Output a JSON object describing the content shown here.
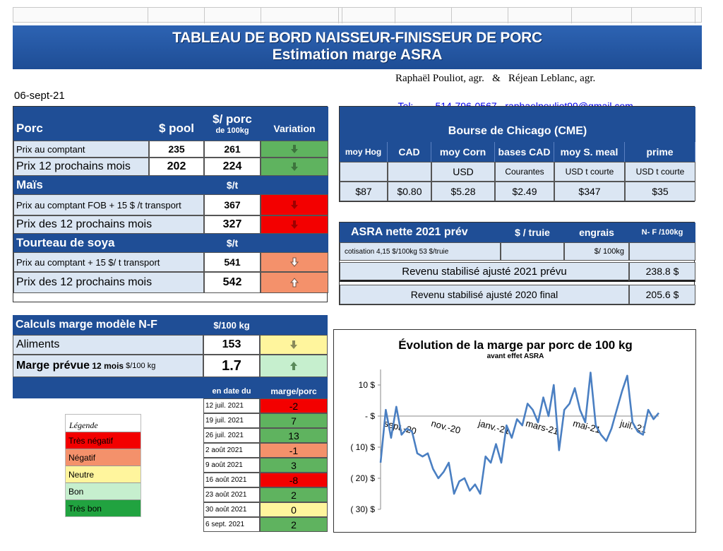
{
  "colors": {
    "header": "#1f4e96",
    "light": "#dbe6f3",
    "red": "#f30000",
    "orange": "#f4916b",
    "yellow": "#fff59d",
    "lightgreen": "#c6efce",
    "green": "#5fb35f",
    "darkgreen": "#21a340"
  },
  "banner": {
    "title": "TABLEAU  DE BORD NAISSEUR-FINISSEUR  DE PORC",
    "subtitle": "Estimation marge ASRA"
  },
  "authors": {
    "names": "Raphaël Pouliot, agr.   &   Réjean Leblanc, agr.",
    "tel_label": "Tel:",
    "tel": "514-796-0567",
    "email": "raphaelpouliot99@gmail.com"
  },
  "date": "06-sept-21",
  "left_table": {
    "col_pool": "$ pool",
    "col_porc": "$/ porc",
    "col_porc_sub": "de 100kg",
    "col_var": "Variation",
    "porc": {
      "title": "Porc",
      "rows": [
        {
          "label": "Prix au comptant",
          "pool": "235",
          "porc": "261",
          "var": "down",
          "color": "green"
        },
        {
          "label": "Prix 12 prochains mois",
          "pool": "202",
          "porc": "224",
          "var": "down",
          "color": "green"
        }
      ]
    },
    "mais": {
      "title": "Maïs",
      "unit": "$/t",
      "rows": [
        {
          "label": "Prix au comptant  FOB + 15 $ /t transport",
          "value": "367",
          "var": "down",
          "color": "red"
        },
        {
          "label": "Prix des 12 prochains mois",
          "value": "327",
          "var": "down",
          "color": "red"
        }
      ]
    },
    "soya": {
      "title": "Tourteau de soya",
      "unit": "$/t",
      "rows": [
        {
          "label": "Prix au comptant  + 15 $/ t  transport",
          "value": "541",
          "var": "down-outline",
          "color": "orange"
        },
        {
          "label": "Prix des 12 prochains mois",
          "value": "542",
          "var": "up-outline",
          "color": "orange"
        }
      ]
    }
  },
  "chicago": {
    "title": "Bourse de Chicago (CME)",
    "headers": [
      "moy Hog",
      "CAD",
      "moy Corn",
      "bases CAD",
      "moy S. meal",
      "prime"
    ],
    "units": [
      "",
      "",
      "USD",
      "Courantes",
      "USD t courte",
      "USD t courte"
    ],
    "values": [
      "$87",
      "$0.80",
      "$5.28",
      "$2.49",
      "$347",
      "$35"
    ]
  },
  "asra": {
    "title": "ASRA nette 2021 prév",
    "col_truie": "$ / truie",
    "col_engrais": "engrais",
    "col_nf": "N- F /100kg",
    "cotisation": "cotisation 4,15 $/100kg  53 $/truie",
    "engrais_unit": "$/ 100kg",
    "rev2021_label": "Revenu stabilisé ajusté 2021 prévu",
    "rev2021": "238.8 $",
    "rev2020_label": "Revenu stabilisé ajusté 2020 final",
    "rev2020": "205.6 $"
  },
  "marge": {
    "title": "Calculs marge  modèle N-F",
    "unit": "$/100 kg",
    "aliments_label": "Aliments",
    "aliments": "153",
    "prevue_label": "Marge prévue",
    "prevue_sub": " 12 mois",
    "prevue_unit": " $/100 kg",
    "prevue": "1.7",
    "col_date": "en date du",
    "col_marge": "marge/porc",
    "history": [
      {
        "date": "12 juil. 2021",
        "value": "-2",
        "color": "red"
      },
      {
        "date": "19 juil. 2021",
        "value": "7",
        "color": "green"
      },
      {
        "date": "26 juil. 2021",
        "value": "13",
        "color": "green"
      },
      {
        "date": "2 août 2021",
        "value": "-1",
        "color": "orange"
      },
      {
        "date": "9 août 2021",
        "value": "3",
        "color": "green"
      },
      {
        "date": "16 août 2021",
        "value": "-8",
        "color": "red"
      },
      {
        "date": "23 août 2021",
        "value": "2",
        "color": "green"
      },
      {
        "date": "30 août 2021",
        "value": "0",
        "color": "yellow"
      },
      {
        "date": "6 sept. 2021",
        "value": "2",
        "color": "green"
      }
    ]
  },
  "legend": {
    "title": "Légende",
    "items": [
      {
        "label": "Très négatif",
        "color": "red"
      },
      {
        "label": "Négatif",
        "color": "orange"
      },
      {
        "label": "Neutre",
        "color": "yellow"
      },
      {
        "label": "Bon",
        "color": "lightgreen"
      },
      {
        "label": "Très bon",
        "color": "darkgreen"
      }
    ]
  },
  "chart_data": {
    "type": "line",
    "title": "Évolution de la marge par porc de 100 kg",
    "subtitle": "avant effet ASRA",
    "ylim": [
      -30,
      15
    ],
    "yticks": [
      10,
      0,
      -10,
      -20,
      -30
    ],
    "ytick_labels": [
      "10  $",
      "-   $",
      "( 10) $",
      "( 20) $",
      "( 30) $"
    ],
    "xtick_labels": [
      "sept.-20",
      "nov.-20",
      "janv.-21",
      "mars-21",
      "mai-21",
      "juil.-21"
    ],
    "xtick_index": [
      0,
      9,
      18,
      27,
      36,
      45
    ],
    "series": [
      {
        "values": [
          -15,
          2,
          -7,
          3,
          -6,
          -4,
          -5,
          -12,
          -13,
          -12,
          -17,
          -20,
          -18,
          -15,
          -25,
          -21,
          -20,
          -24,
          -22,
          -25,
          -13,
          -15,
          -9,
          -15,
          -3,
          -7,
          -1,
          -3,
          4,
          2,
          -2,
          6,
          0,
          10,
          -11,
          2,
          4,
          9,
          2,
          -2,
          14,
          -3,
          -6,
          -8,
          -4,
          2,
          8,
          13,
          -2,
          -5,
          -6,
          2,
          -1,
          1
        ]
      }
    ]
  }
}
